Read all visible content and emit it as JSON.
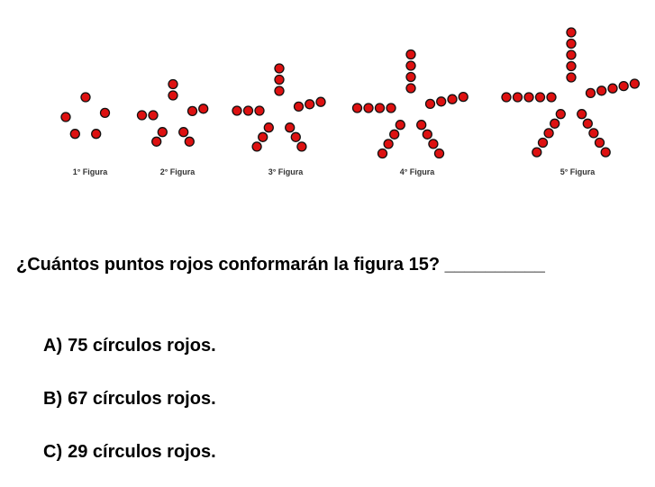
{
  "figures": [
    {
      "label": "1° Figura",
      "n": 1
    },
    {
      "label": "2° Figura",
      "n": 2
    },
    {
      "label": "3° Figura",
      "n": 3
    },
    {
      "label": "4° Figura",
      "n": 4
    },
    {
      "label": "5° Figura",
      "n": 5
    }
  ],
  "dot_color": "#dd1111",
  "dot_outline": "#111111",
  "question": {
    "text": "¿Cuántos puntos rojos conformarán la figura 15?",
    "blank": "__________"
  },
  "options": [
    {
      "letter": "A)",
      "text": "75 círculos rojos."
    },
    {
      "letter": "B)",
      "text": "67 círculos rojos."
    },
    {
      "letter": "C)",
      "text": "29 círculos rojos."
    }
  ]
}
